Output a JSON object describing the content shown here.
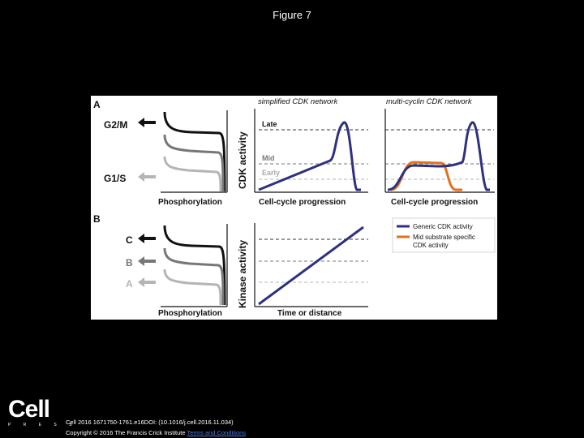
{
  "slide": {
    "title": "Figure 7"
  },
  "figure": {
    "panel_a": {
      "letter": "A",
      "threshold_labels": [
        "G2/M",
        "G1/S"
      ],
      "x_label": "Phosphorylation",
      "y_label": "CDK activity",
      "simplified": {
        "title": "simplified CDK network",
        "levels": [
          "Late",
          "Mid",
          "Early"
        ],
        "x_label": "Cell-cycle progression"
      },
      "multi": {
        "title": "multi-cyclin CDK network",
        "x_label": "Cell-cycle progression"
      }
    },
    "panel_b": {
      "letter": "B",
      "threshold_labels": [
        "C",
        "B",
        "A"
      ],
      "x_label": "Phosphorylation",
      "y_label": "Kinase activity",
      "linear": {
        "x_label": "Time or distance"
      }
    },
    "legend": {
      "items": [
        {
          "label": "Generic CDK activity",
          "color": "#2e3180"
        },
        {
          "label": "Mid substrate specific",
          "label2": "CDK activity",
          "color": "#e2721d"
        }
      ]
    },
    "colors": {
      "dark": "#111111",
      "mid": "#777777",
      "light": "#b5b5b5",
      "blue": "#2e3180",
      "orange": "#e2721d"
    }
  },
  "footer": {
    "logo": "Cell",
    "logo_sub": "P R E S S",
    "citation": "Cell 2016 1671750-1761.e16DOI: (10.1016/j.cell.2016.11.034)",
    "copyright": "Copyright © 2016 The Francis Crick Institute",
    "link": "Terms and Conditions"
  }
}
